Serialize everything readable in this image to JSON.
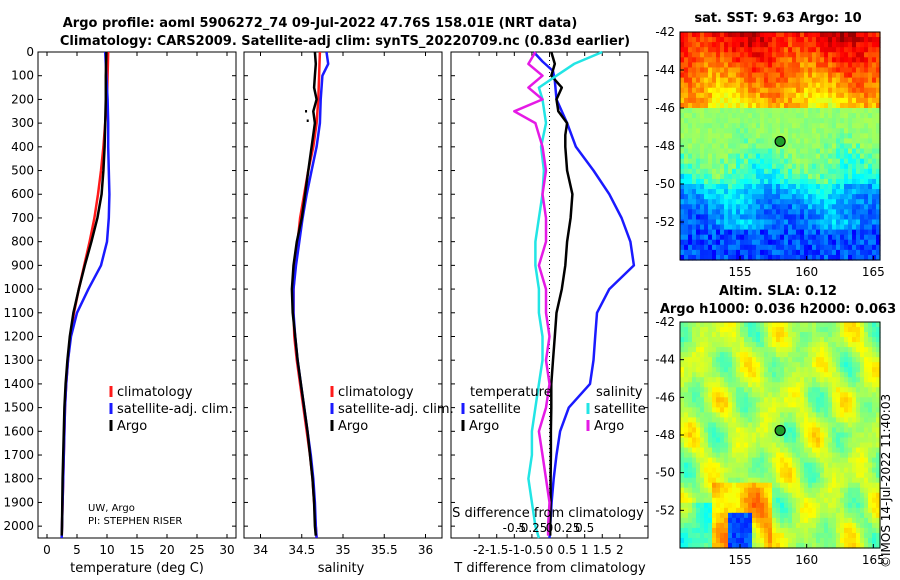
{
  "header": {
    "title_line1": "Argo profile: aoml 5906272_74 09-Jul-2022 47.76S 158.01E (NRT data)",
    "title_line2": "Climatology: CARS2009. Satellite-adj clim: synTS_20220709.nc (0.83d earlier)",
    "credit1": "UW, Argo",
    "credit2": "PI: STEPHEN RISER",
    "stamp": "©IMOS 14-Jul-2022 11:40:03"
  },
  "colors": {
    "climatology": "#ff1a1a",
    "satellite": "#1a1aff",
    "argo": "#000000",
    "sat_salinity": "#22e5e5",
    "argo_salinity": "#e51ae5",
    "marker": "#1e9e2a"
  },
  "chart_data": [
    {
      "id": "temperature",
      "type": "line",
      "xlabel": "temperature (deg C)",
      "ylabel": "",
      "xlim": [
        -1.5,
        31.5
      ],
      "ylim": [
        0,
        2050
      ],
      "y_reversed": true,
      "xticks": [
        0,
        5,
        10,
        15,
        20,
        25,
        30
      ],
      "yticks": [
        0,
        100,
        200,
        300,
        400,
        500,
        600,
        700,
        800,
        900,
        1000,
        1100,
        1200,
        1300,
        1400,
        1500,
        1600,
        1700,
        1800,
        1900,
        2000
      ],
      "legend": [
        "climatology",
        "satellite-adj. clim.",
        "Argo"
      ],
      "series": [
        {
          "name": "climatology",
          "color_key": "climatology",
          "depth": [
            0,
            100,
            200,
            300,
            400,
            500,
            600,
            700,
            800,
            900,
            1000,
            1100,
            1200,
            1300,
            1400,
            1500,
            1600,
            1700,
            1800,
            1900,
            2000,
            2050
          ],
          "values": [
            10.2,
            10.1,
            10.0,
            9.7,
            9.4,
            9.0,
            8.5,
            7.9,
            7.1,
            6.2,
            5.3,
            4.5,
            3.9,
            3.5,
            3.2,
            3.0,
            2.9,
            2.8,
            2.7,
            2.6,
            2.5,
            2.45
          ]
        },
        {
          "name": "satellite-adj. clim.",
          "color_key": "satellite",
          "depth": [
            0,
            100,
            200,
            300,
            400,
            500,
            600,
            700,
            800,
            900,
            1000,
            1100,
            1200,
            1300,
            1400,
            1500,
            1600,
            1700,
            1800,
            1900,
            2000,
            2050
          ],
          "values": [
            9.7,
            9.9,
            10.1,
            10.2,
            10.2,
            10.3,
            10.4,
            10.3,
            10.0,
            9.0,
            6.9,
            5.0,
            4.0,
            3.5,
            3.2,
            3.0,
            2.9,
            2.8,
            2.7,
            2.6,
            2.5,
            2.45
          ]
        },
        {
          "name": "Argo",
          "color_key": "argo",
          "depth": [
            0,
            100,
            200,
            300,
            400,
            500,
            600,
            700,
            800,
            900,
            1000,
            1100,
            1200,
            1300,
            1400,
            1500,
            1600,
            1700,
            1800,
            1900,
            2000,
            2040
          ],
          "values": [
            9.9,
            9.8,
            9.8,
            9.7,
            9.6,
            9.4,
            9.1,
            8.4,
            7.4,
            6.3,
            5.3,
            4.4,
            3.8,
            3.4,
            3.1,
            2.9,
            2.8,
            2.7,
            2.6,
            2.55,
            2.5,
            2.45
          ]
        }
      ]
    },
    {
      "id": "salinity",
      "type": "line",
      "xlabel": "salinity",
      "xlim": [
        33.8,
        36.2
      ],
      "ylim": [
        0,
        2050
      ],
      "y_reversed": true,
      "xticks": [
        34,
        34.5,
        35,
        35.5,
        36
      ],
      "legend": [
        "climatology",
        "satellite-adj. clim.",
        "Argo"
      ],
      "series": [
        {
          "name": "climatology",
          "color_key": "climatology",
          "depth": [
            0,
            100,
            200,
            300,
            400,
            500,
            600,
            700,
            800,
            900,
            1000,
            1100,
            1200,
            1300,
            1400,
            1500,
            1600,
            1700,
            1800,
            1900,
            2000,
            2050
          ],
          "values": [
            34.72,
            34.71,
            34.7,
            34.68,
            34.64,
            34.58,
            34.53,
            34.48,
            34.45,
            34.42,
            34.4,
            34.4,
            34.41,
            34.44,
            34.48,
            34.52,
            34.56,
            34.6,
            34.63,
            34.65,
            34.67,
            34.68
          ]
        },
        {
          "name": "satellite-adj. clim.",
          "color_key": "satellite",
          "depth": [
            0,
            50,
            100,
            200,
            300,
            400,
            500,
            600,
            700,
            800,
            900,
            1000,
            1100,
            1200,
            1300,
            1400,
            1500,
            1600,
            1700,
            1800,
            1900,
            2000,
            2050
          ],
          "values": [
            34.8,
            34.82,
            34.75,
            34.73,
            34.72,
            34.68,
            34.62,
            34.56,
            34.51,
            34.47,
            34.43,
            34.4,
            34.4,
            34.42,
            34.45,
            34.49,
            34.53,
            34.57,
            34.61,
            34.64,
            34.66,
            34.67,
            34.68
          ]
        },
        {
          "name": "Argo",
          "color_key": "argo",
          "depth": [
            0,
            50,
            100,
            150,
            200,
            250,
            300,
            400,
            500,
            600,
            700,
            800,
            900,
            1000,
            1100,
            1200,
            1300,
            1400,
            1500,
            1600,
            1700,
            1800,
            1900,
            2000,
            2040
          ],
          "values": [
            34.66,
            34.67,
            34.66,
            34.65,
            34.68,
            34.64,
            34.66,
            34.62,
            34.58,
            34.54,
            34.5,
            34.44,
            34.4,
            34.38,
            34.39,
            34.42,
            34.45,
            34.49,
            34.53,
            34.57,
            34.6,
            34.63,
            34.65,
            34.66,
            34.67
          ]
        }
      ]
    },
    {
      "id": "difference",
      "type": "line",
      "xlabel": "T difference from climatology",
      "top_xlabel": "S difference from climatology",
      "xlim": [
        -2.8,
        2.8
      ],
      "ylim": [
        0,
        2050
      ],
      "y_reversed": true,
      "xticks": [
        -2,
        -1.5,
        -1,
        -0.5,
        0,
        0.5,
        1,
        1.5,
        2
      ],
      "xtick_labels": [
        "-2",
        "-1.5",
        "-1",
        "-0.5",
        "0",
        "0.5",
        "1",
        "1.5",
        "2"
      ],
      "s_ticks": [
        -0.5,
        -0.25,
        0,
        0.25,
        0.5
      ],
      "s_tick_labels": [
        "-0.5",
        "-0.25",
        "0",
        "0.25",
        "0.5"
      ],
      "s_scale": 2,
      "legend_temperature": {
        "title": "temperature",
        "items": [
          "satellite",
          "Argo"
        ]
      },
      "legend_salinity": {
        "title": "salinity",
        "items": [
          "satellite",
          "Argo"
        ]
      },
      "series": [
        {
          "name": "T satellite",
          "color_key": "satellite",
          "depth": [
            0,
            40,
            80,
            120,
            200,
            300,
            400,
            500,
            600,
            700,
            800,
            900,
            1000,
            1100,
            1200,
            1300,
            1400,
            1500,
            1600,
            1700,
            1800,
            1900,
            2000,
            2050
          ],
          "values": [
            -0.45,
            -0.2,
            0.1,
            0.15,
            0.2,
            0.5,
            0.75,
            1.25,
            1.7,
            2.05,
            2.3,
            2.4,
            1.7,
            1.35,
            1.3,
            1.25,
            1.15,
            0.55,
            0.3,
            0.2,
            0.12,
            0.06,
            0.02,
            0.0
          ]
        },
        {
          "name": "T Argo",
          "color_key": "argo",
          "depth": [
            0,
            50,
            100,
            150,
            200,
            250,
            300,
            350,
            400,
            500,
            600,
            700,
            800,
            900,
            1000,
            1100,
            1200,
            1300,
            1400,
            1500,
            1600,
            1700,
            1800,
            1900,
            2000,
            2040
          ],
          "values": [
            0.05,
            0.15,
            0.05,
            0.35,
            0.2,
            0.25,
            0.5,
            0.45,
            0.45,
            0.5,
            0.65,
            0.6,
            0.5,
            0.45,
            0.35,
            0.2,
            0.15,
            0.1,
            0.05,
            0.05,
            0.04,
            0.04,
            0.03,
            0.03,
            0.02,
            0.02
          ]
        },
        {
          "name": "S satellite",
          "color_key": "sat_salinity",
          "depth": [
            0,
            50,
            100,
            150,
            200,
            300,
            400,
            500,
            600,
            700,
            800,
            900,
            1000,
            1100,
            1200,
            1300,
            1400,
            1500,
            1600,
            1700,
            1800,
            1900,
            2000,
            2050
          ],
          "values": [
            0.75,
            0.35,
            0.1,
            -0.15,
            -0.1,
            -0.05,
            -0.12,
            -0.08,
            -0.1,
            -0.15,
            -0.2,
            -0.2,
            -0.15,
            -0.15,
            -0.1,
            -0.1,
            -0.15,
            -0.2,
            -0.25,
            -0.25,
            -0.3,
            -0.25,
            -0.2,
            -0.15
          ]
        },
        {
          "name": "S Argo",
          "color_key": "argo_salinity",
          "depth": [
            0,
            50,
            100,
            150,
            200,
            250,
            300,
            400,
            500,
            600,
            700,
            800,
            900,
            1000,
            1100,
            1200,
            1300,
            1400,
            1500,
            1600,
            1700,
            1800,
            1900,
            2000,
            2040
          ],
          "values": [
            -0.2,
            -0.3,
            -0.1,
            -0.3,
            -0.1,
            -0.5,
            -0.2,
            -0.1,
            -0.05,
            -0.1,
            -0.05,
            -0.05,
            -0.15,
            -0.05,
            -0.05,
            0.0,
            -0.05,
            0.0,
            -0.05,
            -0.15,
            -0.1,
            -0.05,
            0.0,
            -0.02,
            -0.02
          ]
        }
      ]
    },
    {
      "id": "sst_map",
      "type": "heatmap",
      "title": "sat. SST: 9.63 Argo: 10",
      "xlim": [
        150.5,
        165.5
      ],
      "ylim": [
        -54,
        -42
      ],
      "xticks": [
        155,
        160,
        165
      ],
      "yticks": [
        -42,
        -44,
        -46,
        -48,
        -50,
        -52
      ],
      "marker": {
        "lon": 158.01,
        "lat": -47.76
      }
    },
    {
      "id": "sla_map",
      "type": "heatmap",
      "title": "Altim. SLA: 0.12",
      "subtitle": "Argo h1000: 0.036 h2000: 0.063",
      "xlim": [
        150.5,
        165.5
      ],
      "ylim": [
        -54,
        -42
      ],
      "xticks": [
        155,
        160,
        165
      ],
      "yticks": [
        -42,
        -44,
        -46,
        -48,
        -50,
        -52
      ],
      "marker": {
        "lon": 158.01,
        "lat": -47.76
      }
    }
  ]
}
